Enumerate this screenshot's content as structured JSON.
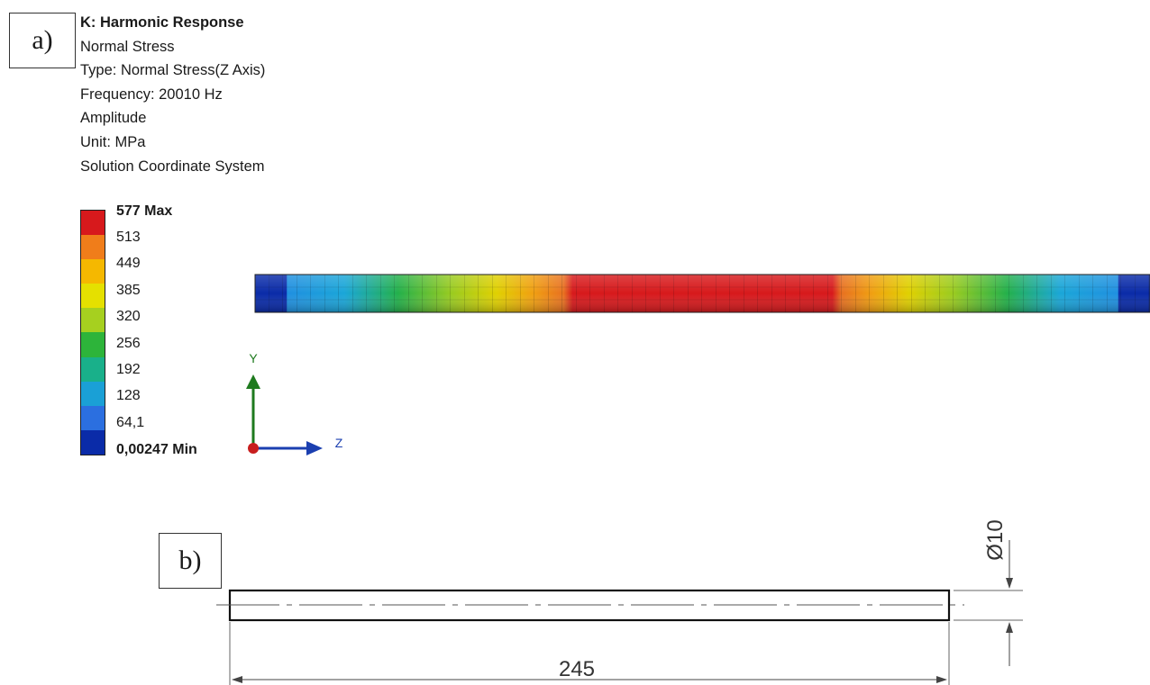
{
  "panel_a": {
    "label": "a)",
    "info": {
      "title": "K: Harmonic Response",
      "lines": [
        "Normal Stress",
        "Type: Normal Stress(Z Axis)",
        "Frequency: 20010 Hz",
        "Amplitude",
        "Unit: MPa",
        "Solution Coordinate System"
      ]
    },
    "legend": {
      "max_label": "577 Max",
      "ticks": [
        "513",
        "449",
        "385",
        "320",
        "256",
        "192",
        "128",
        "64,1"
      ],
      "min_label": "0,00247 Min",
      "colors": [
        "#d7191c",
        "#f07d1a",
        "#f5b800",
        "#e5e000",
        "#a6d01f",
        "#2db43a",
        "#19b08a",
        "#1aa0d6",
        "#2b6fe0",
        "#0a2ba8"
      ]
    },
    "triad": {
      "y_label": "Y",
      "z_label": "Z"
    }
  },
  "panel_b": {
    "label": "b)",
    "dimension_length": "245",
    "dimension_diameter": "Ø10"
  }
}
